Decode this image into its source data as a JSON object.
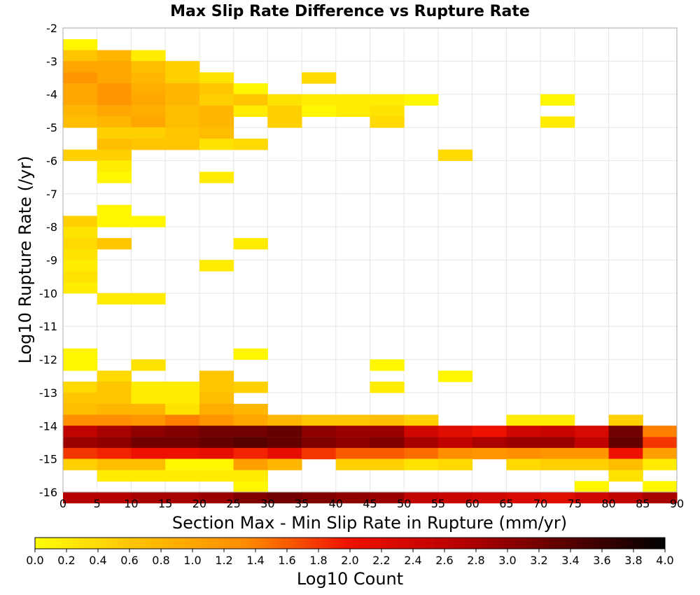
{
  "chart_data": {
    "type": "heatmap",
    "title": "Max Slip Rate Difference vs Rupture Rate",
    "xlabel": "Section Max - Min Slip Rate in Rupture (mm/yr)",
    "ylabel": "Log10 Rupture Rate (/yr)",
    "xlim": [
      0,
      90
    ],
    "ylim": [
      -16,
      -2
    ],
    "x_ticks": [
      "0",
      "5",
      "10",
      "15",
      "20",
      "25",
      "30",
      "35",
      "40",
      "45",
      "50",
      "55",
      "60",
      "65",
      "70",
      "75",
      "80",
      "85",
      "90"
    ],
    "y_ticks": [
      "-2",
      "-3",
      "-4",
      "-5",
      "-6",
      "-7",
      "-8",
      "-9",
      "-10",
      "-11",
      "-12",
      "-13",
      "-14",
      "-15",
      "-16"
    ],
    "x_bin_width": 5,
    "y_bin_height": 0.333,
    "grid": true,
    "colorbar": {
      "label": "Log10 Count",
      "min": 0.0,
      "max": 4.0,
      "ticks": [
        "0.0",
        "0.2",
        "0.4",
        "0.6",
        "0.8",
        "1.0",
        "1.2",
        "1.4",
        "1.6",
        "1.8",
        "2.0",
        "2.2",
        "2.4",
        "2.6",
        "2.8",
        "3.0",
        "3.2",
        "3.4",
        "3.6",
        "3.8",
        "4.0"
      ],
      "stops": [
        "#ffff00",
        "#ffc000",
        "#ff8c00",
        "#ee1100",
        "#bb0000",
        "#600000",
        "#000000"
      ],
      "placement": "bottom"
    },
    "cells": [
      {
        "x": 0,
        "y": -2.67,
        "v": 0.1
      },
      {
        "x": 0,
        "y": -3.0,
        "v": 0.6
      },
      {
        "x": 5,
        "y": -3.0,
        "v": 0.8
      },
      {
        "x": 10,
        "y": -3.0,
        "v": 0.2
      },
      {
        "x": 0,
        "y": -3.33,
        "v": 1.0
      },
      {
        "x": 5,
        "y": -3.33,
        "v": 1.0
      },
      {
        "x": 10,
        "y": -3.33,
        "v": 0.7
      },
      {
        "x": 15,
        "y": -3.33,
        "v": 0.5
      },
      {
        "x": 0,
        "y": -3.67,
        "v": 1.2
      },
      {
        "x": 5,
        "y": -3.67,
        "v": 1.0
      },
      {
        "x": 10,
        "y": -3.67,
        "v": 0.8
      },
      {
        "x": 15,
        "y": -3.67,
        "v": 0.5
      },
      {
        "x": 20,
        "y": -3.67,
        "v": 0.3
      },
      {
        "x": 35,
        "y": -3.67,
        "v": 0.4
      },
      {
        "x": 0,
        "y": -4.0,
        "v": 1.0
      },
      {
        "x": 5,
        "y": -4.0,
        "v": 1.2
      },
      {
        "x": 10,
        "y": -4.0,
        "v": 0.9
      },
      {
        "x": 15,
        "y": -4.0,
        "v": 0.8
      },
      {
        "x": 20,
        "y": -4.0,
        "v": 0.6
      },
      {
        "x": 25,
        "y": -4.0,
        "v": 0.1
      },
      {
        "x": 0,
        "y": -4.33,
        "v": 1.0
      },
      {
        "x": 5,
        "y": -4.33,
        "v": 1.2
      },
      {
        "x": 10,
        "y": -4.33,
        "v": 1.0
      },
      {
        "x": 15,
        "y": -4.33,
        "v": 0.8
      },
      {
        "x": 20,
        "y": -4.33,
        "v": 0.5
      },
      {
        "x": 25,
        "y": -4.33,
        "v": 0.6
      },
      {
        "x": 30,
        "y": -4.33,
        "v": 0.3
      },
      {
        "x": 35,
        "y": -4.33,
        "v": 0.2
      },
      {
        "x": 40,
        "y": -4.33,
        "v": 0.2
      },
      {
        "x": 45,
        "y": -4.33,
        "v": 0.2
      },
      {
        "x": 50,
        "y": -4.33,
        "v": 0.1
      },
      {
        "x": 70,
        "y": -4.33,
        "v": 0.1
      },
      {
        "x": 0,
        "y": -4.67,
        "v": 0.8
      },
      {
        "x": 5,
        "y": -4.67,
        "v": 1.0
      },
      {
        "x": 10,
        "y": -4.67,
        "v": 0.9
      },
      {
        "x": 15,
        "y": -4.67,
        "v": 0.7
      },
      {
        "x": 20,
        "y": -4.67,
        "v": 0.8
      },
      {
        "x": 25,
        "y": -4.67,
        "v": 0.2
      },
      {
        "x": 30,
        "y": -4.67,
        "v": 0.5
      },
      {
        "x": 35,
        "y": -4.67,
        "v": 0.1
      },
      {
        "x": 40,
        "y": -4.67,
        "v": 0.2
      },
      {
        "x": 45,
        "y": -4.67,
        "v": 0.3
      },
      {
        "x": 0,
        "y": -5.0,
        "v": 0.7
      },
      {
        "x": 5,
        "y": -5.0,
        "v": 0.8
      },
      {
        "x": 10,
        "y": -5.0,
        "v": 1.0
      },
      {
        "x": 15,
        "y": -5.0,
        "v": 0.7
      },
      {
        "x": 20,
        "y": -5.0,
        "v": 0.8
      },
      {
        "x": 30,
        "y": -5.0,
        "v": 0.5
      },
      {
        "x": 45,
        "y": -5.0,
        "v": 0.4
      },
      {
        "x": 70,
        "y": -5.0,
        "v": 0.2
      },
      {
        "x": 5,
        "y": -5.33,
        "v": 0.5
      },
      {
        "x": 10,
        "y": -5.33,
        "v": 0.5
      },
      {
        "x": 15,
        "y": -5.33,
        "v": 0.6
      },
      {
        "x": 20,
        "y": -5.33,
        "v": 0.7
      },
      {
        "x": 5,
        "y": -5.67,
        "v": 0.7
      },
      {
        "x": 10,
        "y": -5.67,
        "v": 0.6
      },
      {
        "x": 15,
        "y": -5.67,
        "v": 0.6
      },
      {
        "x": 20,
        "y": -5.67,
        "v": 0.3
      },
      {
        "x": 25,
        "y": -5.67,
        "v": 0.4
      },
      {
        "x": 0,
        "y": -6.0,
        "v": 0.5
      },
      {
        "x": 5,
        "y": -6.0,
        "v": 0.5
      },
      {
        "x": 55,
        "y": -6.0,
        "v": 0.4
      },
      {
        "x": 5,
        "y": -6.33,
        "v": 0.2
      },
      {
        "x": 5,
        "y": -6.67,
        "v": 0.1
      },
      {
        "x": 20,
        "y": -6.67,
        "v": 0.2
      },
      {
        "x": 5,
        "y": -7.67,
        "v": 0.1
      },
      {
        "x": 0,
        "y": -8.0,
        "v": 0.5
      },
      {
        "x": 5,
        "y": -8.0,
        "v": 0.1
      },
      {
        "x": 10,
        "y": -8.0,
        "v": 0.1
      },
      {
        "x": 0,
        "y": -8.33,
        "v": 0.3
      },
      {
        "x": 0,
        "y": -8.67,
        "v": 0.4
      },
      {
        "x": 5,
        "y": -8.67,
        "v": 0.6
      },
      {
        "x": 25,
        "y": -8.67,
        "v": 0.2
      },
      {
        "x": 0,
        "y": -9.0,
        "v": 0.3
      },
      {
        "x": 0,
        "y": -9.33,
        "v": 0.2
      },
      {
        "x": 20,
        "y": -9.33,
        "v": 0.2
      },
      {
        "x": 0,
        "y": -9.67,
        "v": 0.3
      },
      {
        "x": 0,
        "y": -10.0,
        "v": 0.2
      },
      {
        "x": 5,
        "y": -10.33,
        "v": 0.2
      },
      {
        "x": 10,
        "y": -10.33,
        "v": 0.2
      },
      {
        "x": 0,
        "y": -12.0,
        "v": 0.1
      },
      {
        "x": 25,
        "y": -12.0,
        "v": 0.1
      },
      {
        "x": 0,
        "y": -12.33,
        "v": 0.1
      },
      {
        "x": 10,
        "y": -12.33,
        "v": 0.3
      },
      {
        "x": 45,
        "y": -12.33,
        "v": 0.1
      },
      {
        "x": 5,
        "y": -12.67,
        "v": 0.4
      },
      {
        "x": 20,
        "y": -12.67,
        "v": 0.6
      },
      {
        "x": 55,
        "y": -12.67,
        "v": 0.1
      },
      {
        "x": 0,
        "y": -13.0,
        "v": 0.4
      },
      {
        "x": 5,
        "y": -13.0,
        "v": 0.6
      },
      {
        "x": 10,
        "y": -13.0,
        "v": 0.2
      },
      {
        "x": 15,
        "y": -13.0,
        "v": 0.2
      },
      {
        "x": 20,
        "y": -13.0,
        "v": 0.6
      },
      {
        "x": 25,
        "y": -13.0,
        "v": 0.5
      },
      {
        "x": 45,
        "y": -13.0,
        "v": 0.2
      },
      {
        "x": 0,
        "y": -13.33,
        "v": 0.6
      },
      {
        "x": 5,
        "y": -13.33,
        "v": 0.6
      },
      {
        "x": 10,
        "y": -13.33,
        "v": 0.2
      },
      {
        "x": 15,
        "y": -13.33,
        "v": 0.2
      },
      {
        "x": 20,
        "y": -13.33,
        "v": 0.7
      },
      {
        "x": 0,
        "y": -13.67,
        "v": 0.7
      },
      {
        "x": 5,
        "y": -13.67,
        "v": 0.8
      },
      {
        "x": 10,
        "y": -13.67,
        "v": 0.8
      },
      {
        "x": 15,
        "y": -13.67,
        "v": 0.3
      },
      {
        "x": 20,
        "y": -13.67,
        "v": 0.9
      },
      {
        "x": 25,
        "y": -13.67,
        "v": 0.8
      },
      {
        "x": 0,
        "y": -14.0,
        "v": 1.3
      },
      {
        "x": 5,
        "y": -14.0,
        "v": 1.3
      },
      {
        "x": 10,
        "y": -14.0,
        "v": 1.2
      },
      {
        "x": 15,
        "y": -14.0,
        "v": 1.4
      },
      {
        "x": 20,
        "y": -14.0,
        "v": 1.2
      },
      {
        "x": 25,
        "y": -14.0,
        "v": 1.0
      },
      {
        "x": 30,
        "y": -14.0,
        "v": 0.8
      },
      {
        "x": 35,
        "y": -14.0,
        "v": 0.6
      },
      {
        "x": 40,
        "y": -14.0,
        "v": 0.6
      },
      {
        "x": 45,
        "y": -14.0,
        "v": 0.7
      },
      {
        "x": 50,
        "y": -14.0,
        "v": 0.5
      },
      {
        "x": 65,
        "y": -14.0,
        "v": 0.2
      },
      {
        "x": 70,
        "y": -14.0,
        "v": 0.2
      },
      {
        "x": 80,
        "y": -14.0,
        "v": 0.5
      },
      {
        "x": 0,
        "y": -14.33,
        "v": 2.6
      },
      {
        "x": 5,
        "y": -14.33,
        "v": 2.8
      },
      {
        "x": 10,
        "y": -14.33,
        "v": 3.0
      },
      {
        "x": 15,
        "y": -14.33,
        "v": 3.1
      },
      {
        "x": 20,
        "y": -14.33,
        "v": 3.2
      },
      {
        "x": 25,
        "y": -14.33,
        "v": 3.2
      },
      {
        "x": 30,
        "y": -14.33,
        "v": 3.3
      },
      {
        "x": 35,
        "y": -14.33,
        "v": 3.0
      },
      {
        "x": 40,
        "y": -14.33,
        "v": 2.9
      },
      {
        "x": 45,
        "y": -14.33,
        "v": 2.9
      },
      {
        "x": 50,
        "y": -14.33,
        "v": 2.4
      },
      {
        "x": 55,
        "y": -14.33,
        "v": 2.2
      },
      {
        "x": 60,
        "y": -14.33,
        "v": 2.0
      },
      {
        "x": 65,
        "y": -14.33,
        "v": 2.4
      },
      {
        "x": 70,
        "y": -14.33,
        "v": 2.5
      },
      {
        "x": 75,
        "y": -14.33,
        "v": 2.3
      },
      {
        "x": 80,
        "y": -14.33,
        "v": 3.2
      },
      {
        "x": 85,
        "y": -14.33,
        "v": 1.4
      },
      {
        "x": 0,
        "y": -14.67,
        "v": 2.9
      },
      {
        "x": 5,
        "y": -14.67,
        "v": 3.0
      },
      {
        "x": 10,
        "y": -14.67,
        "v": 3.2
      },
      {
        "x": 15,
        "y": -14.67,
        "v": 3.2
      },
      {
        "x": 20,
        "y": -14.67,
        "v": 3.3
      },
      {
        "x": 25,
        "y": -14.67,
        "v": 3.4
      },
      {
        "x": 30,
        "y": -14.67,
        "v": 3.3
      },
      {
        "x": 35,
        "y": -14.67,
        "v": 3.1
      },
      {
        "x": 40,
        "y": -14.67,
        "v": 3.0
      },
      {
        "x": 45,
        "y": -14.67,
        "v": 3.1
      },
      {
        "x": 50,
        "y": -14.67,
        "v": 2.8
      },
      {
        "x": 55,
        "y": -14.67,
        "v": 2.6
      },
      {
        "x": 60,
        "y": -14.67,
        "v": 2.8
      },
      {
        "x": 65,
        "y": -14.67,
        "v": 2.9
      },
      {
        "x": 70,
        "y": -14.67,
        "v": 2.9
      },
      {
        "x": 75,
        "y": -14.67,
        "v": 2.6
      },
      {
        "x": 80,
        "y": -14.67,
        "v": 3.3
      },
      {
        "x": 85,
        "y": -14.67,
        "v": 1.8
      },
      {
        "x": 0,
        "y": -15.0,
        "v": 1.8
      },
      {
        "x": 5,
        "y": -15.0,
        "v": 1.9
      },
      {
        "x": 10,
        "y": -15.0,
        "v": 2.0
      },
      {
        "x": 15,
        "y": -15.0,
        "v": 2.0
      },
      {
        "x": 20,
        "y": -15.0,
        "v": 2.1
      },
      {
        "x": 25,
        "y": -15.0,
        "v": 1.9
      },
      {
        "x": 30,
        "y": -15.0,
        "v": 2.1
      },
      {
        "x": 35,
        "y": -15.0,
        "v": 1.8
      },
      {
        "x": 40,
        "y": -15.0,
        "v": 1.6
      },
      {
        "x": 45,
        "y": -15.0,
        "v": 1.6
      },
      {
        "x": 50,
        "y": -15.0,
        "v": 1.5
      },
      {
        "x": 55,
        "y": -15.0,
        "v": 1.3
      },
      {
        "x": 60,
        "y": -15.0,
        "v": 1.2
      },
      {
        "x": 65,
        "y": -15.0,
        "v": 1.3
      },
      {
        "x": 70,
        "y": -15.0,
        "v": 1.2
      },
      {
        "x": 75,
        "y": -15.0,
        "v": 1.2
      },
      {
        "x": 80,
        "y": -15.0,
        "v": 2.0
      },
      {
        "x": 85,
        "y": -15.0,
        "v": 1.1
      },
      {
        "x": 0,
        "y": -15.33,
        "v": 0.5
      },
      {
        "x": 5,
        "y": -15.33,
        "v": 0.7
      },
      {
        "x": 10,
        "y": -15.33,
        "v": 0.7
      },
      {
        "x": 15,
        "y": -15.33,
        "v": 0.1
      },
      {
        "x": 20,
        "y": -15.33,
        "v": 0.1
      },
      {
        "x": 25,
        "y": -15.33,
        "v": 1.1
      },
      {
        "x": 30,
        "y": -15.33,
        "v": 0.8
      },
      {
        "x": 40,
        "y": -15.33,
        "v": 0.5
      },
      {
        "x": 45,
        "y": -15.33,
        "v": 0.5
      },
      {
        "x": 50,
        "y": -15.33,
        "v": 0.3
      },
      {
        "x": 55,
        "y": -15.33,
        "v": 0.4
      },
      {
        "x": 65,
        "y": -15.33,
        "v": 0.4
      },
      {
        "x": 70,
        "y": -15.33,
        "v": 0.5
      },
      {
        "x": 75,
        "y": -15.33,
        "v": 0.5
      },
      {
        "x": 80,
        "y": -15.33,
        "v": 0.7
      },
      {
        "x": 85,
        "y": -15.33,
        "v": 0.2
      },
      {
        "x": 5,
        "y": -15.67,
        "v": 0.2
      },
      {
        "x": 10,
        "y": -15.67,
        "v": 0.2
      },
      {
        "x": 15,
        "y": -15.67,
        "v": 0.2
      },
      {
        "x": 20,
        "y": -15.67,
        "v": 0.2
      },
      {
        "x": 25,
        "y": -15.67,
        "v": 0.2
      },
      {
        "x": 80,
        "y": -15.67,
        "v": 0.3
      },
      {
        "x": 25,
        "y": -16.0,
        "v": 0.1
      },
      {
        "x": 75,
        "y": -16.0,
        "v": 0.1
      },
      {
        "x": 85,
        "y": -16.0,
        "v": 0.1
      }
    ],
    "bottom_row": {
      "y": -16.33,
      "values": [
        2.7,
        2.7,
        2.8,
        2.8,
        2.9,
        3.1,
        3.2,
        3.1,
        3.0,
        2.9,
        2.6,
        2.5,
        2.4,
        2.3,
        2.2,
        2.4,
        2.6,
        2.8
      ]
    }
  }
}
